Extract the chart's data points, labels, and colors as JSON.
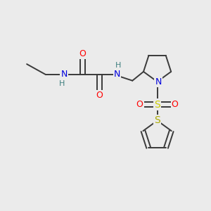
{
  "bg_color": "#ebebeb",
  "bond_color": "#3a3a3a",
  "bond_width": 1.4,
  "atom_colors": {
    "N": "#0000dd",
    "O": "#ff0000",
    "S_sulfonyl": "#cccc00",
    "S_thiophene": "#aaaa00",
    "H": "#408080",
    "C": "#3a3a3a"
  },
  "figsize": [
    3.0,
    3.0
  ],
  "dpi": 100
}
